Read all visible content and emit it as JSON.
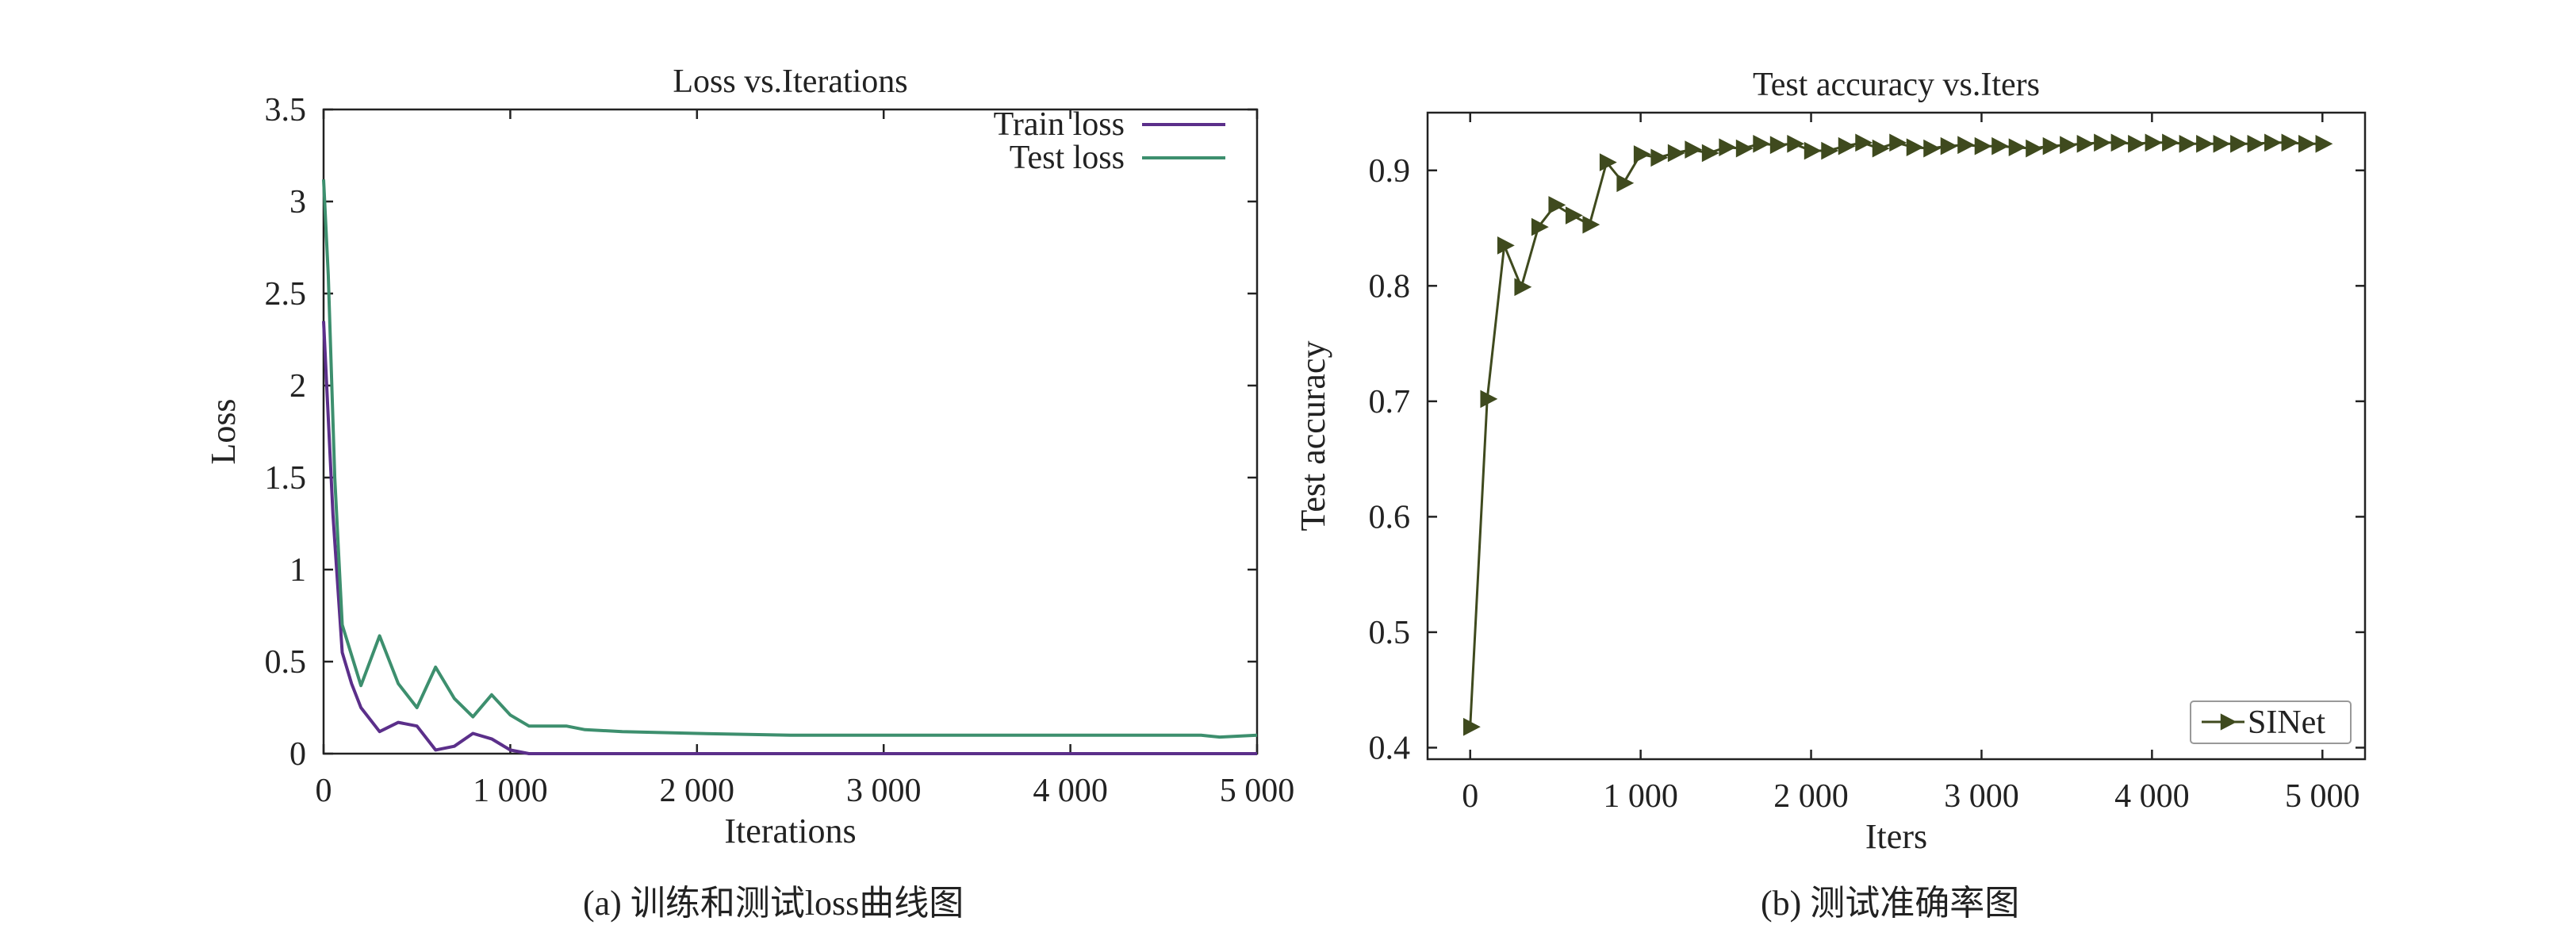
{
  "captions": {
    "left": "(a) 训练和测试loss曲线图",
    "right": "(b) 测试准确率图"
  },
  "chart_data": [
    {
      "type": "line",
      "title": "Loss vs.Iterations",
      "xlabel": "Iterations",
      "ylabel": "Loss",
      "xlim": [
        0,
        5000
      ],
      "ylim": [
        0,
        3.5
      ],
      "xticks": [
        "0",
        "1 000",
        "2 000",
        "3 000",
        "4 000",
        "5 000"
      ],
      "yticks": [
        "0",
        "0.5",
        "1",
        "1.5",
        "2",
        "2.5",
        "3",
        "3.5"
      ],
      "legend_position": "top-right",
      "series": [
        {
          "name": "Train loss",
          "color": "#5b2f8a",
          "x": [
            0,
            50,
            100,
            150,
            200,
            300,
            400,
            500,
            600,
            700,
            800,
            900,
            1000,
            1100,
            1200,
            1400,
            1600,
            1800,
            2000,
            2500,
            3000,
            3500,
            4000,
            4500,
            5000
          ],
          "y": [
            2.35,
            1.3,
            0.55,
            0.38,
            0.25,
            0.12,
            0.17,
            0.15,
            0.02,
            0.04,
            0.11,
            0.08,
            0.02,
            0.0,
            0.0,
            0.0,
            0.0,
            0.0,
            0.0,
            0.0,
            0.0,
            0.0,
            0.0,
            0.0,
            0.0
          ]
        },
        {
          "name": "Test loss",
          "color": "#3d8f6e",
          "x": [
            0,
            25,
            60,
            100,
            200,
            300,
            400,
            500,
            600,
            700,
            800,
            900,
            1000,
            1100,
            1300,
            1400,
            1600,
            2000,
            2500,
            3000,
            3500,
            4000,
            4500,
            4700,
            4800,
            5000
          ],
          "y": [
            3.12,
            2.6,
            1.5,
            0.7,
            0.37,
            0.64,
            0.38,
            0.25,
            0.47,
            0.3,
            0.2,
            0.32,
            0.21,
            0.15,
            0.15,
            0.13,
            0.12,
            0.11,
            0.1,
            0.1,
            0.1,
            0.1,
            0.1,
            0.1,
            0.09,
            0.1
          ]
        }
      ]
    },
    {
      "type": "line",
      "title": "Test accuracy vs.Iters",
      "xlabel": "Iters",
      "ylabel": "Test accuracy",
      "xlim": [
        -250,
        5250
      ],
      "ylim": [
        0.39,
        0.95
      ],
      "xticks": [
        "0",
        "1 000",
        "2 000",
        "3 000",
        "4 000",
        "5 000"
      ],
      "yticks": [
        "0.4",
        "0.5",
        "0.6",
        "0.7",
        "0.8",
        "0.9"
      ],
      "legend_position": "bottom-right",
      "series": [
        {
          "name": "SINet",
          "color": "#3f4a1e",
          "marker": "triangle-right",
          "x": [
            0,
            100,
            200,
            300,
            400,
            500,
            600,
            700,
            800,
            900,
            1000,
            1100,
            1200,
            1300,
            1400,
            1500,
            1600,
            1700,
            1800,
            1900,
            2000,
            2100,
            2200,
            2300,
            2400,
            2500,
            2600,
            2700,
            2800,
            2900,
            3000,
            3100,
            3200,
            3300,
            3400,
            3500,
            3600,
            3700,
            3800,
            3900,
            4000,
            4100,
            4200,
            4300,
            4400,
            4500,
            4600,
            4700,
            4800,
            4900,
            5000
          ],
          "y": [
            0.418,
            0.702,
            0.835,
            0.799,
            0.851,
            0.87,
            0.861,
            0.853,
            0.907,
            0.889,
            0.914,
            0.911,
            0.915,
            0.918,
            0.915,
            0.92,
            0.919,
            0.923,
            0.922,
            0.923,
            0.917,
            0.917,
            0.921,
            0.924,
            0.919,
            0.924,
            0.92,
            0.919,
            0.921,
            0.922,
            0.921,
            0.921,
            0.92,
            0.919,
            0.921,
            0.922,
            0.923,
            0.924,
            0.924,
            0.923,
            0.924,
            0.924,
            0.923,
            0.923,
            0.923,
            0.923,
            0.923,
            0.924,
            0.924,
            0.923,
            0.923
          ]
        }
      ]
    }
  ]
}
